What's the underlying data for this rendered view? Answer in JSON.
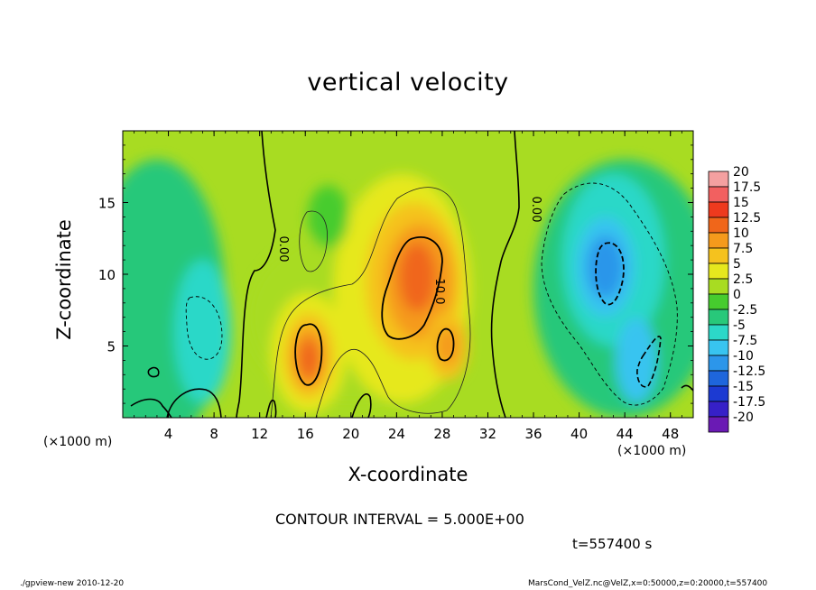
{
  "chart_data": {
    "type": "heatmap",
    "title": "vertical velocity",
    "xlabel": "X-coordinate",
    "ylabel": "Z-coordinate",
    "x_unit_note": "(×1000 m)",
    "y_unit_note": "(×1000 m)",
    "xlim": [
      0,
      50
    ],
    "ylim": [
      0,
      20
    ],
    "x_ticks": [
      4,
      8,
      12,
      16,
      20,
      24,
      28,
      32,
      36,
      40,
      44,
      48
    ],
    "y_ticks": [
      5,
      10,
      15
    ],
    "contour_labels": [
      "0.00",
      "0.00",
      "10.0"
    ],
    "colorbar": {
      "ticks": [
        "20",
        "17.5",
        "15",
        "12.5",
        "10",
        "7.5",
        "5",
        "2.5",
        "0",
        "-2.5",
        "-5",
        "-7.5",
        "-10",
        "-12.5",
        "-15",
        "-17.5",
        "-20"
      ],
      "colors": [
        "#f4a0a0",
        "#f26060",
        "#ee3a1e",
        "#f0661a",
        "#f59a1c",
        "#f5c21e",
        "#e6e81e",
        "#a8dc22",
        "#46cc2e",
        "#28c87a",
        "#2cd8c8",
        "#38c4f0",
        "#2c96ea",
        "#1e66dc",
        "#1c3ad2",
        "#3620c8",
        "#6a1ab4"
      ]
    },
    "features": [
      {
        "name": "updraft",
        "x": 16.3,
        "z": 4.2,
        "peak": 12.5
      },
      {
        "name": "updraft",
        "x": 26.0,
        "z": 9.5,
        "peak": 12.5
      },
      {
        "name": "updraft",
        "x": 28.5,
        "z": 5.0,
        "peak": 10.0
      },
      {
        "name": "downdraft",
        "x": 42.0,
        "z": 11.0,
        "peak": -10.0
      },
      {
        "name": "downdraft",
        "x": 45.0,
        "z": 3.5,
        "peak": -10.0
      }
    ]
  },
  "contour_interval": "CONTOUR INTERVAL = 5.000E+00",
  "time_label": "t=557400 s",
  "footer_left": "./gpview-new  2010-12-20",
  "footer_right": "MarsCond_VelZ.nc@VelZ,x=0:50000,z=0:20000,t=557400"
}
